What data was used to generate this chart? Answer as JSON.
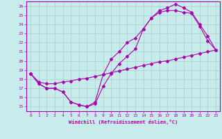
{
  "xlabel": "Windchill (Refroidissement éolien,°C)",
  "bg_color": "#c8ecec",
  "grid_color": "#aacccc",
  "line_color": "#aa00aa",
  "xlim": [
    -0.5,
    23.5
  ],
  "ylim": [
    14.5,
    26.5
  ],
  "xticks": [
    0,
    1,
    2,
    3,
    4,
    5,
    6,
    7,
    8,
    9,
    10,
    11,
    12,
    13,
    14,
    15,
    16,
    17,
    18,
    19,
    20,
    21,
    22,
    23
  ],
  "yticks": [
    15,
    16,
    17,
    18,
    19,
    20,
    21,
    22,
    23,
    24,
    25,
    26
  ],
  "curve1_x": [
    0,
    1,
    2,
    3,
    4,
    5,
    6,
    7,
    8,
    9,
    10,
    11,
    12,
    13,
    14,
    15,
    16,
    17,
    18,
    19,
    20,
    21,
    22,
    23
  ],
  "curve1_y": [
    18.6,
    17.5,
    17.0,
    17.0,
    16.6,
    15.5,
    15.2,
    15.0,
    15.3,
    17.2,
    18.6,
    19.7,
    20.5,
    21.3,
    23.5,
    24.7,
    25.5,
    25.8,
    26.2,
    25.8,
    25.3,
    24.0,
    22.7,
    21.2
  ],
  "curve2_x": [
    0,
    1,
    2,
    3,
    4,
    5,
    6,
    7,
    8,
    9,
    10,
    11,
    12,
    13,
    14,
    15,
    16,
    17,
    18,
    19,
    20,
    21,
    22,
    23
  ],
  "curve2_y": [
    18.6,
    17.5,
    17.0,
    17.0,
    16.6,
    15.5,
    15.2,
    15.0,
    15.5,
    18.5,
    20.2,
    21.0,
    22.0,
    22.5,
    23.5,
    24.7,
    25.3,
    25.5,
    25.5,
    25.3,
    25.2,
    23.8,
    22.2,
    21.2
  ],
  "curve3_x": [
    0,
    1,
    2,
    3,
    4,
    5,
    6,
    7,
    8,
    9,
    10,
    11,
    12,
    13,
    14,
    15,
    16,
    17,
    18,
    19,
    20,
    21,
    22,
    23
  ],
  "curve3_y": [
    18.6,
    17.7,
    17.5,
    17.5,
    17.7,
    17.8,
    18.0,
    18.1,
    18.3,
    18.5,
    18.7,
    18.9,
    19.1,
    19.3,
    19.5,
    19.7,
    19.9,
    20.0,
    20.2,
    20.4,
    20.6,
    20.8,
    21.0,
    21.2
  ]
}
